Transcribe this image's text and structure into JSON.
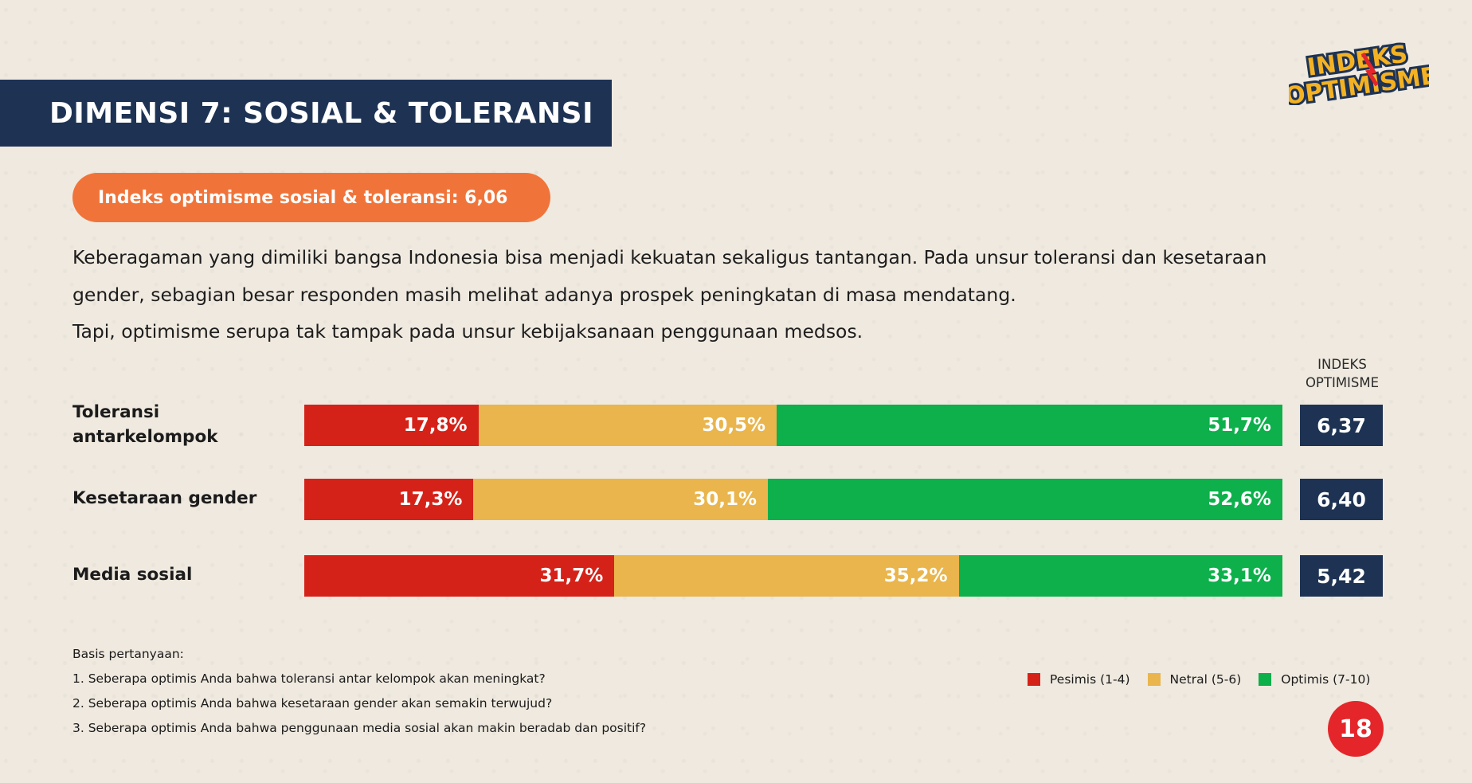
{
  "logo": {
    "line1": "INDEKS",
    "line2": "OPTIMISME"
  },
  "header": {
    "title": "DIMENSI 7: SOSIAL & TOLERANSI"
  },
  "index_pill": {
    "text": "Indeks optimisme sosial & toleransi: 6,06"
  },
  "description": {
    "line1": "Keberagaman yang dimiliki bangsa Indonesia bisa menjadi kekuatan sekaligus tantangan. Pada unsur toleransi dan kesetaraan",
    "line2": "gender, sebagian besar responden masih melihat adanya prospek peningkatan di masa mendatang.",
    "line3": "Tapi, optimisme serupa tak tampak pada unsur kebijaksanaan penggunaan medsos."
  },
  "index_column": {
    "line1": "INDEKS",
    "line2": "OPTIMISME"
  },
  "chart_data": {
    "type": "bar",
    "orientation": "horizontal",
    "stacked": true,
    "percent_stacked": true,
    "categories": [
      "Toleransi antarkelompok",
      "Kesetaraan gender",
      "Media sosial"
    ],
    "series": [
      {
        "name": "Pesimis (1-4)",
        "values": [
          17.8,
          17.3,
          31.7
        ],
        "labels": [
          "17,8%",
          "17,3%",
          "31,7%"
        ],
        "color": "#d52219"
      },
      {
        "name": "Netral (5-6)",
        "values": [
          30.5,
          30.1,
          35.2
        ],
        "labels": [
          "30,5%",
          "30,1%",
          "35,2%"
        ],
        "color": "#e9b54c"
      },
      {
        "name": "Optimis (7-10)",
        "values": [
          51.7,
          52.6,
          33.1
        ],
        "labels": [
          "51,7%",
          "52,6%",
          "33,1%"
        ],
        "color": "#0db04b"
      }
    ],
    "index_values": [
      "6,37",
      "6,40",
      "5,42"
    ],
    "legend_position": "bottom-right"
  },
  "rows": [
    {
      "label_line1": "Toleransi",
      "label_line2": "antarkelompok"
    },
    {
      "label_line1": "Kesetaraan gender",
      "label_line2": ""
    },
    {
      "label_line1": "Media sosial",
      "label_line2": ""
    }
  ],
  "basis": {
    "title": "Basis pertanyaan:",
    "q1": "1. Seberapa optimis Anda bahwa toleransi antar kelompok akan meningkat?",
    "q2": "2. Seberapa optimis Anda bahwa kesetaraan gender akan semakin terwujud?",
    "q3": "3. Seberapa optimis Anda bahwa penggunaan media sosial akan makin beradab dan positif?"
  },
  "legend": {
    "pes": "Pesimis (1-4)",
    "net": "Netral (5-6)",
    "opt": "Optimis (7-10)"
  },
  "colors": {
    "navy": "#1e3354",
    "orange": "#f0743a",
    "red": "#d52219",
    "yellow": "#e9b54c",
    "green": "#0db04b",
    "page_badge": "#e4262a"
  },
  "page": {
    "number": "18"
  }
}
